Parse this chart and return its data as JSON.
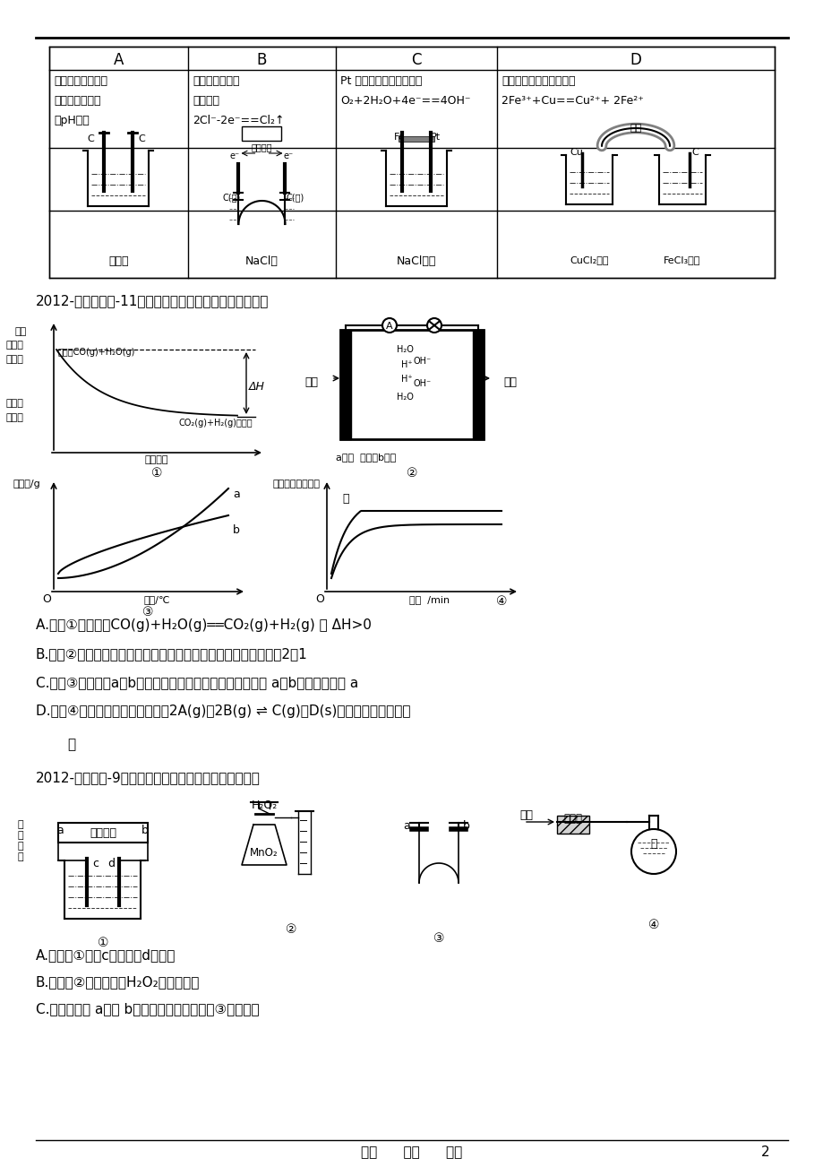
{
  "background_color": "#ffffff",
  "page_number": "2",
  "footer_text": "用心      爱心      专心",
  "table_headers": [
    "A",
    "B",
    "C",
    "D"
  ],
  "col_A_lines": [
    "通电一段时间后，",
    "搅拌均匀，溶液",
    "的pH增大"
  ],
  "col_B_lines": [
    "甲电极上的电极",
    "反应为：",
    "2Cl⁻-2e⁻==Cl₂↑"
  ],
  "col_C_lines": [
    "Pt 电极上的电极反应为：",
    "O₂+2H₂O+4e⁻==4OH⁻"
  ],
  "col_D_lines": [
    "总反应的离子方程式为：",
    "2Fe³⁺+Cu==Cu²⁺+ 2Fe²⁺"
  ],
  "q1_text": "2012-石景山一模-11．关于下列四个图象的说法正确的是",
  "choice_A": "A.　图①表示反应CO(g)+H₂O(g)══CO₂(g)+H₂(g) 的 ΔH>0",
  "choice_B": "B.　图②为氢氧燃料电池示意图，正、负极通入的气体体积之比为2：1",
  "choice_C": "C.　图③表示物质a、b的溶解度曲线，可以用重结晶方法从 a、b混合物中提纯 a",
  "choice_D1": "D.　图④可以表示压强对可逆反应2A(g)＋2B(g) ⇌ C(g)＋D(s)的影响，且乙的压强",
  "choice_D2": "大",
  "q2_text": "2012-丰台一模-9．下列关于各装置图的叙述不正确的是",
  "choice2_A": "A.　装置①中，c为阳极，d为阴极",
  "choice2_B": "B.　装置②可定量测定H₂O₂的分解速率",
  "choice2_C": "C.　关闭活塞 a，从 b处加水，可以检查装置③的气密性"
}
